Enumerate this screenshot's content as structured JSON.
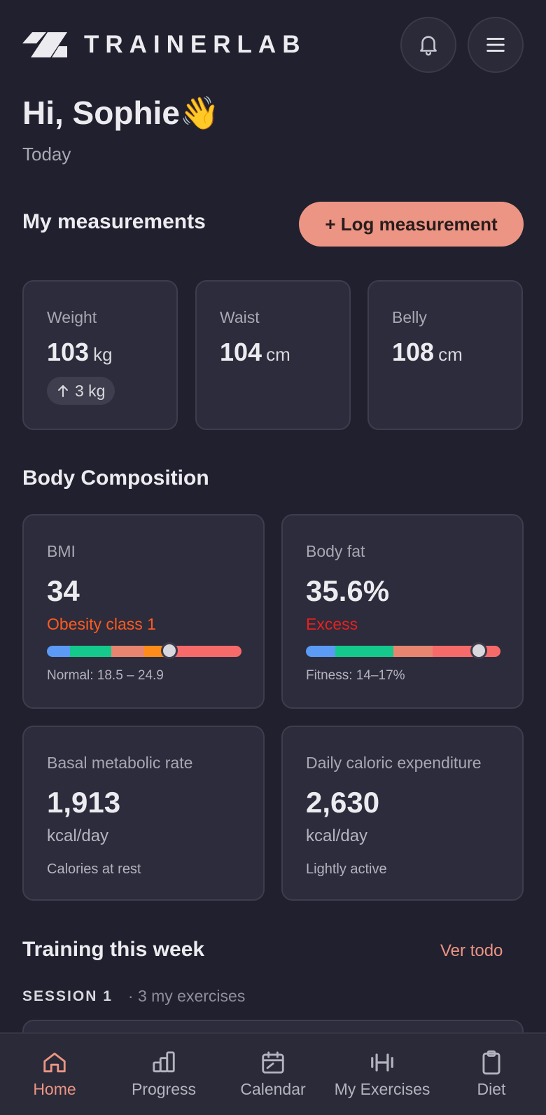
{
  "brand": {
    "name": "TRAINERLAB"
  },
  "greeting": {
    "text": "Hi, Sophie👋",
    "subtitle": "Today"
  },
  "measurements": {
    "title": "My measurements",
    "log_button": "+ Log measurement",
    "cards": [
      {
        "label": "Weight",
        "value": "103",
        "unit": "kg",
        "delta": "3 kg",
        "delta_direction": "up"
      },
      {
        "label": "Waist",
        "value": "104",
        "unit": "cm"
      },
      {
        "label": "Belly",
        "value": "108",
        "unit": "cm"
      }
    ]
  },
  "body_composition": {
    "title": "Body Composition",
    "bmi": {
      "label": "BMI",
      "value": "34",
      "status": "Obesity class 1",
      "status_color": "#ff5a1f",
      "note": "Normal: 18.5 – 24.9",
      "marker_fraction": 0.63,
      "segments": [
        {
          "color": "#5b9bf5",
          "fraction": 0.12
        },
        {
          "color": "#14c98b",
          "fraction": 0.21
        },
        {
          "color": "#e88570",
          "fraction": 0.17
        },
        {
          "color": "#ff8c1a",
          "fraction": 0.13
        },
        {
          "color": "#f66a6a",
          "fraction": 0.37
        }
      ]
    },
    "body_fat": {
      "label": "Body fat",
      "value": "35.6%",
      "status": "Excess",
      "status_color": "#e8201e",
      "note": "Fitness: 14–17%",
      "marker_fraction": 0.89,
      "segments": [
        {
          "color": "#5b9bf5",
          "fraction": 0.15
        },
        {
          "color": "#14c98b",
          "fraction": 0.3
        },
        {
          "color": "#e88570",
          "fraction": 0.2
        },
        {
          "color": "#f66a6a",
          "fraction": 0.35
        }
      ]
    },
    "bmr": {
      "label": "Basal metabolic rate",
      "value": "1,913",
      "unit": "kcal/day",
      "sub": "Calories at rest"
    },
    "tdee": {
      "label": "Daily caloric expenditure",
      "value": "2,630",
      "unit": "kcal/day",
      "sub": "Lightly active"
    }
  },
  "training": {
    "title": "Training this week",
    "see_all": "Ver todo",
    "session_name": "SESSION 1",
    "session_meta": "· 3 my exercises"
  },
  "nav": {
    "items": [
      {
        "label": "Home",
        "icon": "home-icon",
        "active": true
      },
      {
        "label": "Progress",
        "icon": "bar-chart-icon"
      },
      {
        "label": "Calendar",
        "icon": "calendar-icon"
      },
      {
        "label": "My Exercises",
        "icon": "dumbbell-icon"
      },
      {
        "label": "Diet",
        "icon": "clipboard-icon"
      }
    ]
  },
  "colors": {
    "accent": "#ec9584",
    "background": "#21202e",
    "card": "#2c2c3c"
  }
}
